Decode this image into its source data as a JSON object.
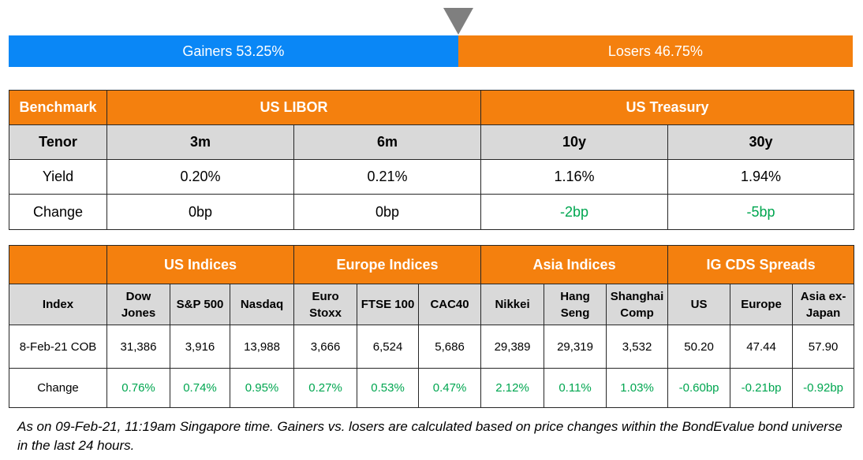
{
  "ratio": {
    "gainers_label": "Gainers 53.25%",
    "losers_label": "Losers 46.75%",
    "gainers_pct": 53.25,
    "losers_pct": 46.75,
    "gainers_color": "#0a87f6",
    "losers_color": "#f4800e",
    "pointer_icon": "triangle-down-icon"
  },
  "benchmark": {
    "header": {
      "col0": "Benchmark",
      "group1": "US LIBOR",
      "group2": "US Treasury"
    },
    "tenor": {
      "label": "Tenor",
      "values": [
        "3m",
        "6m",
        "10y",
        "30y"
      ]
    },
    "yield": {
      "label": "Yield",
      "values": [
        "0.20%",
        "0.21%",
        "1.16%",
        "1.94%"
      ]
    },
    "change": {
      "label": "Change",
      "values": [
        "0bp",
        "0bp",
        "-2bp",
        "-5bp"
      ]
    }
  },
  "indices": {
    "groups": [
      "US Indices",
      "Europe Indices",
      "Asia Indices",
      "IG CDS Spreads"
    ],
    "index_label": "Index",
    "columns": [
      [
        "Dow",
        "Jones"
      ],
      [
        "S&P 500"
      ],
      [
        "Nasdaq"
      ],
      [
        "Euro",
        "Stoxx"
      ],
      [
        "FTSE 100"
      ],
      [
        "CAC40"
      ],
      [
        "Nikkei"
      ],
      [
        "Hang",
        "Seng"
      ],
      [
        "Shanghai",
        "Comp"
      ],
      [
        "US"
      ],
      [
        "Europe"
      ],
      [
        "Asia ex-",
        "Japan"
      ]
    ],
    "cob": {
      "label": "8-Feb-21 COB",
      "values": [
        "31,386",
        "3,916",
        "13,988",
        "3,666",
        "6,524",
        "5,686",
        "29,389",
        "29,319",
        "3,532",
        "50.20",
        "47.44",
        "57.90"
      ]
    },
    "change": {
      "label": "Change",
      "values": [
        "0.76%",
        "0.74%",
        "0.95%",
        "0.27%",
        "0.53%",
        "0.47%",
        "2.12%",
        "0.11%",
        "1.03%",
        "-0.60bp",
        "-0.21bp",
        "-0.92bp"
      ]
    }
  },
  "colors": {
    "header_orange": "#f4800e",
    "subheader_gray": "#d9d9d9",
    "change_green": "#00a650"
  },
  "footnote": "As on 09-Feb-21, 11:19am Singapore time. Gainers vs. losers are calculated based on price changes within the BondEvalue bond universe in the last 24 hours."
}
